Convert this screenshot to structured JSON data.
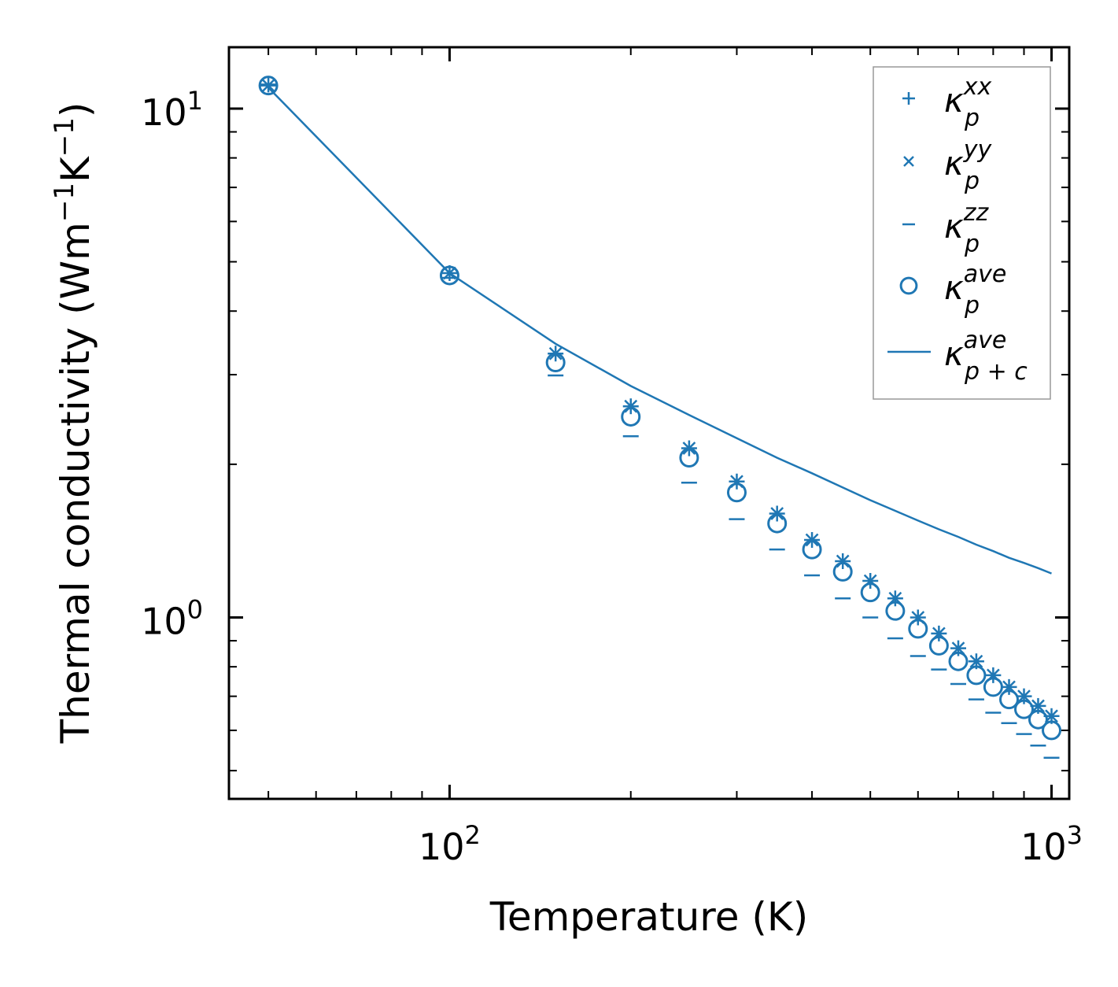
{
  "chart_data": {
    "type": "scatter",
    "title": "",
    "xlabel": "Temperature (K)",
    "ylabel_main": "Thermal conductivity (Wm",
    "ylabel_exp1": "−1",
    "ylabel_mid": "K",
    "ylabel_exp2": "−1",
    "ylabel_end": ")",
    "xscale": "log",
    "yscale": "log",
    "xlim": [
      43,
      1070
    ],
    "ylim": [
      0.44,
      13.2
    ],
    "x_ticks": [
      {
        "value": 100,
        "base": "10",
        "exp": "2"
      },
      {
        "value": 1000,
        "base": "10",
        "exp": "3"
      }
    ],
    "y_ticks": [
      {
        "value": 1,
        "base": "10",
        "exp": "0"
      },
      {
        "value": 10,
        "base": "10",
        "exp": "1"
      }
    ],
    "color": "#1f77b4",
    "x": [
      50,
      100,
      150,
      200,
      250,
      300,
      350,
      400,
      450,
      500,
      550,
      600,
      650,
      700,
      750,
      800,
      850,
      900,
      950,
      1000
    ],
    "series": [
      {
        "name": "kappa_p_xx",
        "marker": "plus",
        "values": [
          11.15,
          4.75,
          3.3,
          2.6,
          2.15,
          1.85,
          1.6,
          1.42,
          1.29,
          1.18,
          1.09,
          1.0,
          0.93,
          0.87,
          0.82,
          0.77,
          0.73,
          0.7,
          0.67,
          0.64
        ]
      },
      {
        "name": "kappa_p_yy",
        "marker": "x",
        "values": [
          11.1,
          4.75,
          3.3,
          2.6,
          2.15,
          1.85,
          1.6,
          1.42,
          1.29,
          1.18,
          1.09,
          1.0,
          0.93,
          0.87,
          0.82,
          0.77,
          0.73,
          0.7,
          0.67,
          0.64
        ]
      },
      {
        "name": "kappa_p_zz",
        "marker": "hline",
        "values": [
          11.1,
          4.65,
          2.99,
          2.27,
          1.84,
          1.56,
          1.36,
          1.21,
          1.09,
          1.0,
          0.91,
          0.84,
          0.79,
          0.74,
          0.69,
          0.65,
          0.62,
          0.59,
          0.56,
          0.53
        ]
      },
      {
        "name": "kappa_p_ave",
        "marker": "circle",
        "values": [
          11.1,
          4.7,
          3.17,
          2.48,
          2.06,
          1.76,
          1.53,
          1.36,
          1.23,
          1.12,
          1.03,
          0.95,
          0.88,
          0.82,
          0.77,
          0.73,
          0.69,
          0.66,
          0.63,
          0.6
        ]
      },
      {
        "name": "kappa_p+c_ave",
        "marker": "line",
        "values": [
          11.0,
          4.75,
          3.45,
          2.85,
          2.5,
          2.25,
          2.06,
          1.92,
          1.8,
          1.7,
          1.62,
          1.55,
          1.49,
          1.44,
          1.39,
          1.35,
          1.31,
          1.28,
          1.25,
          1.22
        ]
      }
    ],
    "legend": {
      "position": "top-right",
      "entries": [
        {
          "marker": "plus",
          "base": "κ",
          "sup": "xx",
          "sub": "p"
        },
        {
          "marker": "x",
          "base": "κ",
          "sup": "yy",
          "sub": "p"
        },
        {
          "marker": "hline",
          "base": "κ",
          "sup": "zz",
          "sub": "p"
        },
        {
          "marker": "circle",
          "base": "κ",
          "sup": "ave",
          "sub": "p"
        },
        {
          "marker": "line",
          "base": "κ",
          "sup": "ave",
          "sub": "p + c"
        }
      ]
    }
  }
}
